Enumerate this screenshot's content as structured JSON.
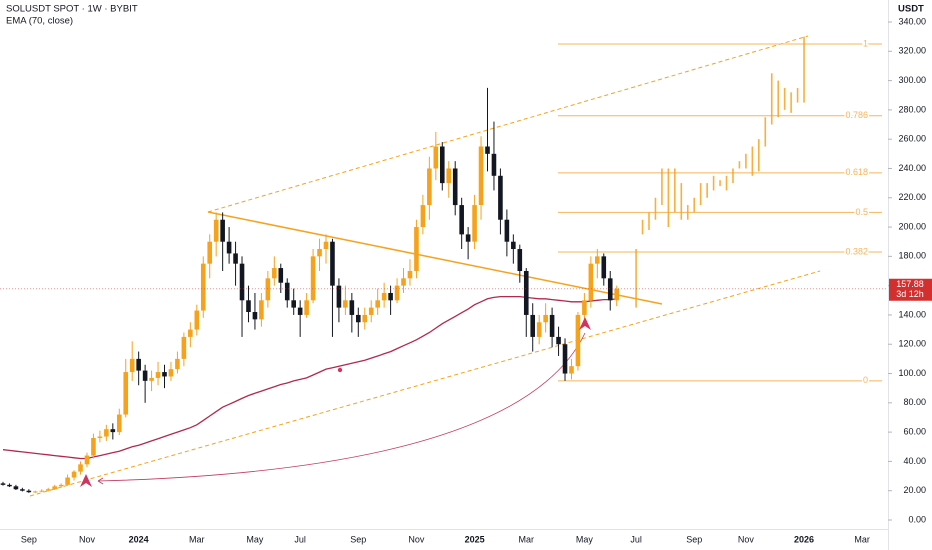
{
  "chart_data": {
    "type": "candlestick",
    "title": "SOLUSDT SPOT · 1W · BYBIT",
    "indicator": "EMA (70, close)",
    "currency": "USDT",
    "up_color": "#f7a21b",
    "down_color": "#131722",
    "ema_color": "#b2294e",
    "fib_color": "#f7b45a",
    "ylim": [
      0,
      340
    ],
    "yticks": [
      {
        "value": 0,
        "label": "0.00"
      },
      {
        "value": 20,
        "label": "20.00"
      },
      {
        "value": 40,
        "label": "40.00"
      },
      {
        "value": 60,
        "label": "60.00"
      },
      {
        "value": 80,
        "label": "80.00"
      },
      {
        "value": 100,
        "label": "100.00"
      },
      {
        "value": 120,
        "label": "120.00"
      },
      {
        "value": 140,
        "label": "140.00"
      },
      {
        "value": 160,
        "label": "160.00"
      },
      {
        "value": 180,
        "label": "180.00"
      },
      {
        "value": 200,
        "label": "200.00"
      },
      {
        "value": 220,
        "label": "220.00"
      },
      {
        "value": 240,
        "label": "240.00"
      },
      {
        "value": 260,
        "label": "260.00"
      },
      {
        "value": 280,
        "label": "280.00"
      },
      {
        "value": 300,
        "label": "300.00"
      },
      {
        "value": 320,
        "label": "320.00"
      },
      {
        "value": 340,
        "label": "340.00"
      }
    ],
    "categories": [
      null,
      null,
      null,
      null,
      "Sep",
      null,
      null,
      null,
      null,
      null,
      null,
      null,
      null,
      "Nov",
      null,
      null,
      null,
      null,
      null,
      null,
      null,
      "2024",
      null,
      null,
      null,
      null,
      null,
      null,
      null,
      null,
      "Mar",
      null,
      null,
      null,
      null,
      null,
      null,
      null,
      null,
      "May",
      null,
      null,
      null,
      null,
      null,
      null,
      "Jul",
      null,
      null,
      null,
      null,
      null,
      null,
      null,
      null,
      "Sep",
      null,
      null,
      null,
      null,
      null,
      null,
      null,
      null,
      "Nov",
      null,
      null,
      null,
      null,
      null,
      null,
      null,
      null,
      "2025",
      null,
      null,
      null,
      null,
      null,
      null,
      null,
      "Mar",
      null,
      null,
      null,
      null,
      null,
      null,
      null,
      null,
      "May",
      null,
      null,
      null,
      null,
      null,
      null,
      null,
      "Jul",
      null,
      null,
      null,
      null,
      null,
      null,
      null,
      null,
      "Sep",
      null,
      null,
      null,
      null,
      null,
      null,
      null,
      "Nov",
      null,
      null,
      null,
      null,
      null,
      null,
      null,
      null,
      "2026",
      null,
      null,
      null,
      null,
      null,
      null,
      null,
      null,
      "Mar",
      null,
      null
    ],
    "ohlc": [
      [
        25,
        26,
        23.5,
        24
      ],
      [
        24,
        25,
        22.5,
        23
      ],
      [
        23,
        24,
        20.5,
        21
      ],
      [
        21,
        22,
        19.5,
        20
      ],
      [
        20,
        21,
        18.5,
        19
      ],
      [
        19,
        20,
        18.5,
        19.5
      ],
      [
        19.5,
        21,
        19,
        20
      ],
      [
        20,
        22,
        19.5,
        21
      ],
      [
        21,
        24,
        20.5,
        23
      ],
      [
        23,
        25,
        22,
        24
      ],
      [
        24,
        31,
        23.5,
        29
      ],
      [
        29,
        34,
        27,
        33
      ],
      [
        33,
        40,
        31,
        38
      ],
      [
        38,
        46,
        36,
        44
      ],
      [
        44,
        59,
        42,
        56
      ],
      [
        56,
        61,
        53,
        57
      ],
      [
        57,
        65,
        54,
        62
      ],
      [
        62,
        66,
        55,
        60
      ],
      [
        60,
        76,
        58,
        72
      ],
      [
        72,
        110,
        70,
        101
      ],
      [
        101,
        122,
        95,
        110
      ],
      [
        110,
        115,
        92,
        102
      ],
      [
        102,
        106,
        80,
        95
      ],
      [
        95,
        102,
        88,
        97
      ],
      [
        97,
        108,
        92,
        101
      ],
      [
        101,
        106,
        90,
        98
      ],
      [
        98,
        108,
        95,
        103
      ],
      [
        103,
        115,
        100,
        110
      ],
      [
        110,
        128,
        105,
        125
      ],
      [
        125,
        135,
        118,
        130
      ],
      [
        130,
        147,
        126,
        143
      ],
      [
        143,
        180,
        138,
        175
      ],
      [
        175,
        195,
        165,
        190
      ],
      [
        190,
        210,
        180,
        205
      ],
      [
        205,
        210,
        170,
        190
      ],
      [
        190,
        200,
        175,
        182
      ],
      [
        182,
        190,
        160,
        175
      ],
      [
        175,
        180,
        125,
        150
      ],
      [
        150,
        160,
        135,
        142
      ],
      [
        142,
        155,
        130,
        137
      ],
      [
        137,
        155,
        132,
        150
      ],
      [
        150,
        170,
        145,
        165
      ],
      [
        165,
        180,
        160,
        172
      ],
      [
        172,
        175,
        155,
        162
      ],
      [
        162,
        165,
        145,
        150
      ],
      [
        150,
        158,
        140,
        145
      ],
      [
        145,
        150,
        125,
        140
      ],
      [
        140,
        155,
        138,
        150
      ],
      [
        150,
        185,
        148,
        180
      ],
      [
        180,
        192,
        170,
        185
      ],
      [
        185,
        195,
        175,
        190
      ],
      [
        190,
        192,
        125,
        160
      ],
      [
        160,
        165,
        135,
        145
      ],
      [
        145,
        160,
        140,
        150
      ],
      [
        150,
        155,
        128,
        140
      ],
      [
        140,
        145,
        125,
        135
      ],
      [
        135,
        145,
        130,
        140
      ],
      [
        140,
        150,
        135,
        145
      ],
      [
        145,
        158,
        140,
        150
      ],
      [
        150,
        162,
        145,
        155
      ],
      [
        155,
        160,
        140,
        150
      ],
      [
        150,
        165,
        148,
        160
      ],
      [
        160,
        172,
        155,
        165
      ],
      [
        165,
        178,
        160,
        170
      ],
      [
        170,
        205,
        165,
        200
      ],
      [
        200,
        222,
        195,
        215
      ],
      [
        215,
        248,
        205,
        240
      ],
      [
        240,
        265,
        232,
        255
      ],
      [
        255,
        258,
        225,
        230
      ],
      [
        230,
        245,
        220,
        240
      ],
      [
        240,
        245,
        208,
        215
      ],
      [
        215,
        220,
        185,
        195
      ],
      [
        195,
        200,
        178,
        190
      ],
      [
        190,
        222,
        185,
        215
      ],
      [
        215,
        262,
        205,
        255
      ],
      [
        255,
        295,
        238,
        250
      ],
      [
        250,
        272,
        225,
        235
      ],
      [
        235,
        240,
        195,
        205
      ],
      [
        205,
        212,
        180,
        190
      ],
      [
        190,
        195,
        175,
        185
      ],
      [
        185,
        188,
        162,
        170
      ],
      [
        170,
        172,
        125,
        140
      ],
      [
        140,
        148,
        115,
        125
      ],
      [
        125,
        140,
        120,
        135
      ],
      [
        135,
        148,
        128,
        140
      ],
      [
        140,
        145,
        118,
        125
      ],
      [
        125,
        132,
        112,
        120
      ],
      [
        120,
        124,
        95,
        100
      ],
      [
        100,
        110,
        96,
        105
      ],
      [
        105,
        142,
        102,
        140
      ],
      [
        140,
        155,
        135,
        150
      ],
      [
        150,
        180,
        145,
        175
      ],
      [
        175,
        185,
        165,
        180
      ],
      [
        180,
        182,
        160,
        165
      ],
      [
        165,
        170,
        143,
        150
      ],
      [
        150,
        160,
        146,
        157.88
      ],
      null,
      null,
      null,
      null,
      null,
      null,
      null,
      null,
      null,
      null,
      null,
      null,
      null,
      null,
      null,
      null,
      null,
      null,
      null,
      null,
      null,
      null,
      null,
      null,
      null,
      null,
      null,
      null,
      null,
      null,
      null,
      null,
      null,
      null,
      null,
      null,
      null,
      null,
      null,
      null
    ],
    "ema": [
      48,
      47.5,
      47,
      46.5,
      46,
      45.5,
      45,
      44.5,
      44,
      43.5,
      43,
      42.5,
      42,
      42,
      43,
      44,
      45,
      46,
      47,
      48.5,
      50,
      51,
      52.5,
      54,
      55.5,
      57,
      58.5,
      60,
      61.5,
      63,
      65,
      68,
      71,
      74,
      77,
      79,
      81,
      83,
      85,
      86.5,
      88,
      89.5,
      91,
      92.5,
      93.5,
      95,
      96,
      97,
      99,
      101,
      103,
      104,
      105,
      106,
      107,
      108,
      109,
      110.5,
      112,
      113.5,
      115,
      117,
      119,
      121,
      123,
      125.5,
      128,
      131,
      134,
      136.5,
      139,
      141.5,
      144,
      147,
      149,
      151,
      152,
      152.5,
      152.5,
      152.5,
      152.5,
      152,
      151.5,
      151,
      151,
      150.5,
      150,
      149.5,
      149,
      149,
      149,
      149.5,
      150,
      150.5,
      150.5,
      151,
      null,
      null,
      null,
      null,
      null,
      null,
      null,
      null,
      null,
      null,
      null,
      null,
      null,
      null,
      null,
      null,
      null,
      null,
      null,
      null,
      null,
      null,
      null,
      null,
      null,
      null,
      null,
      null,
      null,
      null,
      null,
      null,
      null,
      null,
      null,
      null,
      null,
      null,
      null,
      null
    ],
    "projection": [
      null,
      null,
      null,
      null,
      null,
      null,
      null,
      null,
      null,
      null,
      null,
      null,
      null,
      null,
      null,
      null,
      null,
      null,
      null,
      null,
      null,
      null,
      null,
      null,
      null,
      null,
      null,
      null,
      null,
      null,
      null,
      null,
      null,
      null,
      null,
      null,
      null,
      null,
      null,
      null,
      null,
      null,
      null,
      null,
      null,
      null,
      null,
      null,
      null,
      null,
      null,
      null,
      null,
      null,
      null,
      null,
      null,
      null,
      null,
      null,
      null,
      null,
      null,
      null,
      null,
      null,
      null,
      null,
      null,
      null,
      null,
      null,
      null,
      null,
      null,
      null,
      null,
      null,
      null,
      null,
      null,
      null,
      null,
      null,
      null,
      null,
      null,
      null,
      null,
      null,
      null,
      null,
      null,
      null,
      null,
      null,
      null,
      null,
      [
        145,
        185
      ],
      [
        195,
        205
      ],
      [
        198,
        210
      ],
      [
        205,
        220
      ],
      [
        215,
        240
      ],
      [
        200,
        240
      ],
      [
        210,
        240
      ],
      [
        205,
        230
      ],
      [
        205,
        215
      ],
      [
        210,
        220
      ],
      [
        215,
        230
      ],
      [
        220,
        230
      ],
      [
        225,
        235
      ],
      [
        228,
        232
      ],
      [
        225,
        235
      ],
      [
        230,
        240
      ],
      [
        240,
        245
      ],
      [
        240,
        250
      ],
      [
        235,
        255
      ],
      [
        238,
        260
      ],
      [
        255,
        275
      ],
      [
        270,
        305
      ],
      [
        275,
        300
      ],
      [
        280,
        295
      ],
      [
        278,
        292
      ],
      [
        285,
        295
      ],
      [
        285,
        330
      ],
      null,
      null,
      null,
      null,
      null,
      null,
      null,
      null,
      null,
      null,
      null
    ],
    "fib": [
      {
        "level": 1,
        "price": 325
      },
      {
        "level": 0.786,
        "price": 276
      },
      {
        "level": 0.618,
        "price": 237
      },
      {
        "level": 0.5,
        "price": 210
      },
      {
        "level": 0.382,
        "price": 183
      },
      {
        "level": 0,
        "price": 95
      }
    ],
    "last_price": {
      "value": 157.88,
      "countdown": "3d 12h"
    }
  }
}
